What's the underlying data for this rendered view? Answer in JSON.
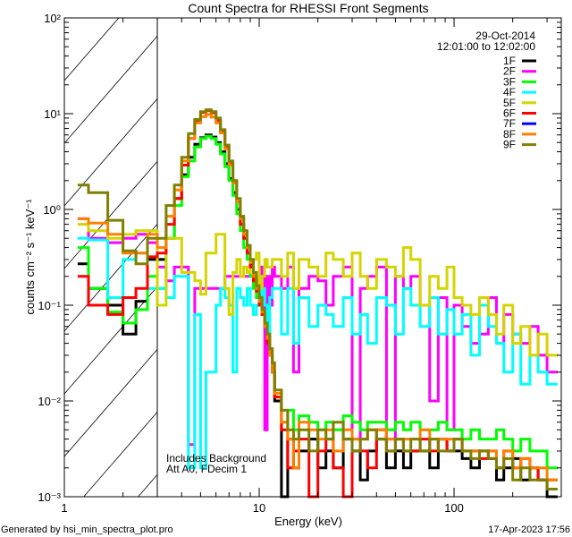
{
  "chart_data": {
    "type": "line",
    "title": "Count Spectra for RHESSI Front Segments",
    "xlabel": "Energy (keV)",
    "ylabel": "counts cm⁻² s⁻¹ keV⁻¹",
    "xscale": "log",
    "yscale": "log",
    "xlim": [
      1,
      355
    ],
    "ylim": [
      0.001,
      100
    ],
    "x_tick_labels": [
      "1",
      "10",
      "100"
    ],
    "y_tick_labels": [
      "10⁻³",
      "10⁻²",
      "10⁻¹",
      "10⁰",
      "10¹",
      "10²"
    ],
    "date": "29-Oct-2014",
    "time_range": "12:01:00 to 12:02:00",
    "annotations": [
      "Includes Background",
      "Att A0, FDecim 1"
    ],
    "shaded_region_keV": [
      1,
      3
    ],
    "legend_position": "top-right",
    "energy_edges": [
      1.17,
      1.33,
      1.67,
      2,
      2.33,
      2.67,
      3,
      3.33,
      3.67,
      4,
      4.33,
      4.67,
      5,
      5.33,
      5.67,
      6,
      6.33,
      6.67,
      7,
      7.33,
      7.67,
      8,
      8.33,
      8.67,
      9,
      9.33,
      9.67,
      10,
      10.33,
      10.67,
      11,
      11.33,
      11.67,
      12,
      13,
      14,
      15,
      16,
      18,
      20,
      22,
      24,
      27,
      30,
      33,
      36,
      40,
      45,
      50,
      55,
      60,
      67,
      75,
      83,
      92,
      100,
      110,
      122,
      135,
      150,
      165,
      180,
      200,
      220,
      245,
      270,
      300,
      340
    ],
    "series": [
      {
        "name": "1F",
        "color": "#000000",
        "values": [
          0.27,
          0.15,
          0.1,
          0.05,
          0.11,
          0.3,
          0.3,
          0.5,
          1.3,
          2.3,
          3.5,
          4.8,
          5.6,
          6.0,
          5.7,
          5.0,
          4.0,
          3.0,
          2.1,
          1.5,
          1.0,
          0.7,
          0.5,
          0.35,
          0.27,
          0.2,
          0.17,
          0.13,
          0.1,
          0.07,
          0.05,
          0.035,
          0.02,
          0.01,
          0.001,
          0.004,
          0.002,
          0.003,
          0.004,
          0.002,
          0.003,
          0.002,
          0.004,
          0.003,
          0.0015,
          0.003,
          0.004,
          0.002,
          0.003,
          0.002,
          0.003,
          0.003,
          0.002,
          0.004,
          0.003,
          0.003,
          0.0025,
          0.002,
          0.003,
          0.0025,
          0.0015,
          0.002,
          0.0025,
          0.0015,
          0.002,
          0.0015,
          0.001
        ]
      },
      {
        "name": "2F",
        "color": "#ff00ff",
        "values": [
          0.8,
          0.5,
          0.45,
          0.5,
          0.55,
          0.45,
          0.25,
          0.18,
          0.25,
          0.25,
          0.0035,
          0.15,
          0.15,
          0.15,
          0.15,
          0.15,
          0.15,
          0.2,
          0.2,
          0.2,
          0.2,
          0.2,
          0.2,
          0.2,
          0.25,
          0.18,
          0.2,
          0.25,
          0.2,
          0.005,
          0.2,
          0.1,
          0.25,
          0.2,
          0.15,
          0.25,
          0.02,
          0.15,
          0.2,
          0.18,
          0.1,
          0.2,
          0.25,
          0.003,
          0.15,
          0.2,
          0.25,
          0.004,
          0.2,
          0.15,
          0.2,
          0.1,
          0.01,
          0.12,
          0.005,
          0.1,
          0.06,
          0.04,
          0.05,
          0.12,
          0.04,
          0.08,
          0.05,
          0.04,
          0.06,
          0.03,
          0.02
        ]
      },
      {
        "name": "3F",
        "color": "#00ff00",
        "values": [
          0.4,
          0.15,
          0.085,
          0.065,
          0.09,
          0.2,
          0.15,
          0.5,
          1.1,
          2.2,
          3.2,
          4.5,
          5.5,
          5.8,
          5.5,
          4.8,
          3.8,
          2.8,
          2.0,
          1.4,
          0.9,
          0.6,
          0.4,
          0.3,
          0.2,
          0.15,
          0.12,
          0.1,
          0.08,
          0.06,
          0.045,
          0.03,
          0.02,
          0.012,
          0.006,
          0.008,
          0.005,
          0.007,
          0.006,
          0.005,
          0.006,
          0.005,
          0.007,
          0.006,
          0.005,
          0.006,
          0.006,
          0.005,
          0.006,
          0.005,
          0.006,
          0.005,
          0.005,
          0.006,
          0.005,
          0.005,
          0.004,
          0.005,
          0.004,
          0.004,
          0.005,
          0.004,
          0.003,
          0.004,
          0.003,
          0.003,
          0.002
        ]
      },
      {
        "name": "4F",
        "color": "#00ffff",
        "values": [
          0.5,
          0.48,
          0.12,
          0.3,
          0.35,
          0.15,
          0.15,
          0.12,
          0.2,
          0.2,
          0.002,
          0.08,
          0.002,
          0.02,
          0.02,
          0.1,
          0.15,
          0.12,
          0.1,
          0.02,
          0.15,
          0.12,
          0.1,
          0.15,
          0.1,
          0.08,
          0.1,
          0.12,
          0.15,
          0.1,
          0.05,
          0.12,
          0.15,
          0.15,
          0.05,
          0.15,
          0.04,
          0.12,
          0.06,
          0.1,
          0.08,
          0.06,
          0.12,
          0.05,
          0.08,
          0.04,
          0.12,
          0.1,
          0.05,
          0.15,
          0.1,
          0.06,
          0.12,
          0.05,
          0.09,
          0.05,
          0.08,
          0.03,
          0.1,
          0.06,
          0.04,
          0.02,
          0.05,
          0.015,
          0.03,
          0.02,
          0.015
        ]
      },
      {
        "name": "5F",
        "color": "#d4d400",
        "values": [
          0.7,
          0.6,
          0.5,
          0.55,
          0.6,
          0.6,
          0.1,
          0.5,
          0.5,
          0.22,
          0.22,
          0.18,
          0.13,
          0.35,
          0.35,
          0.55,
          0.55,
          0.15,
          0.08,
          0.22,
          0.3,
          0.2,
          0.25,
          0.22,
          0.25,
          0.3,
          0.35,
          0.15,
          0.2,
          0.3,
          0.25,
          0.25,
          0.3,
          0.3,
          0.2,
          0.35,
          0.15,
          0.3,
          0.25,
          0.2,
          0.35,
          0.3,
          0.2,
          0.35,
          0.2,
          0.15,
          0.3,
          0.25,
          0.2,
          0.4,
          0.3,
          0.1,
          0.2,
          0.15,
          0.25,
          0.12,
          0.1,
          0.08,
          0.12,
          0.08,
          0.05,
          0.1,
          0.04,
          0.06,
          0.03,
          0.05,
          0.03
        ]
      },
      {
        "name": "6F",
        "color": "#ff0000",
        "values": [
          0.2,
          0.1,
          0.08,
          0.12,
          0.15,
          0.32,
          0.35,
          0.7,
          1.3,
          2.9,
          5.5,
          8.5,
          10.3,
          10.8,
          10.2,
          8.5,
          6.5,
          4.5,
          3.0,
          1.9,
          1.2,
          0.7,
          0.5,
          0.35,
          0.25,
          0.18,
          0.14,
          0.1,
          0.08,
          0.06,
          0.04,
          0.03,
          0.02,
          0.011,
          0.005,
          0.002,
          0.003,
          0.004,
          0.001,
          0.003,
          0.004,
          0.002,
          0.001,
          0.004,
          0.003,
          0.002,
          0.005,
          0.003,
          0.004,
          0.003,
          0.003,
          0.004,
          0.003,
          0.004,
          0.003,
          0.004,
          0.003,
          0.003,
          0.0025,
          0.003,
          0.002,
          0.003,
          0.002,
          0.0025,
          0.002,
          0.0015,
          0.0015
        ]
      },
      {
        "name": "7F",
        "color": "#0000ff",
        "values": []
      },
      {
        "name": "8F",
        "color": "#ff8000",
        "values": [
          0.8,
          0.72,
          0.55,
          0.35,
          0.35,
          0.55,
          0.4,
          0.85,
          1.6,
          3.2,
          5.5,
          8.0,
          9.3,
          9.8,
          9.2,
          8.0,
          6.3,
          4.3,
          2.9,
          1.9,
          1.2,
          0.8,
          0.55,
          0.4,
          0.28,
          0.2,
          0.15,
          0.11,
          0.085,
          0.06,
          0.045,
          0.03,
          0.02,
          0.012,
          0.006,
          0.004,
          0.002,
          0.006,
          0.005,
          0.004,
          0.005,
          0.003,
          0.005,
          0.004,
          0.004,
          0.005,
          0.005,
          0.004,
          0.004,
          0.004,
          0.004,
          0.005,
          0.004,
          0.004,
          0.004,
          0.004,
          0.003,
          0.003,
          0.003,
          0.003,
          0.002,
          0.003,
          0.002,
          0.0025,
          0.002,
          0.002,
          0.0015
        ]
      },
      {
        "name": "9F",
        "color": "#808000",
        "values": [
          1.8,
          1.5,
          0.77,
          0.37,
          0.27,
          0.5,
          0.5,
          1.1,
          1.8,
          3.5,
          6.2,
          8.7,
          10.5,
          11.0,
          10.5,
          9.0,
          6.8,
          4.7,
          3.2,
          2.0,
          1.3,
          0.85,
          0.6,
          0.42,
          0.3,
          0.22,
          0.16,
          0.12,
          0.09,
          0.065,
          0.05,
          0.035,
          0.025,
          0.013,
          0.008,
          0.005,
          0.004,
          0.005,
          0.003,
          0.005,
          0.004,
          0.006,
          0.004,
          0.003,
          0.004,
          0.005,
          0.004,
          0.003,
          0.004,
          0.003,
          0.004,
          0.003,
          0.004,
          0.003,
          0.003,
          0.004,
          0.003,
          0.0025,
          0.003,
          0.0025,
          0.002,
          0.0025,
          0.0015,
          0.002,
          0.0015,
          0.0015,
          0.0012
        ]
      }
    ]
  },
  "footer": {
    "generated_by": "Generated by hsi_min_spectra_plot.pro",
    "timestamp": "17-Apr-2023 17:56"
  }
}
